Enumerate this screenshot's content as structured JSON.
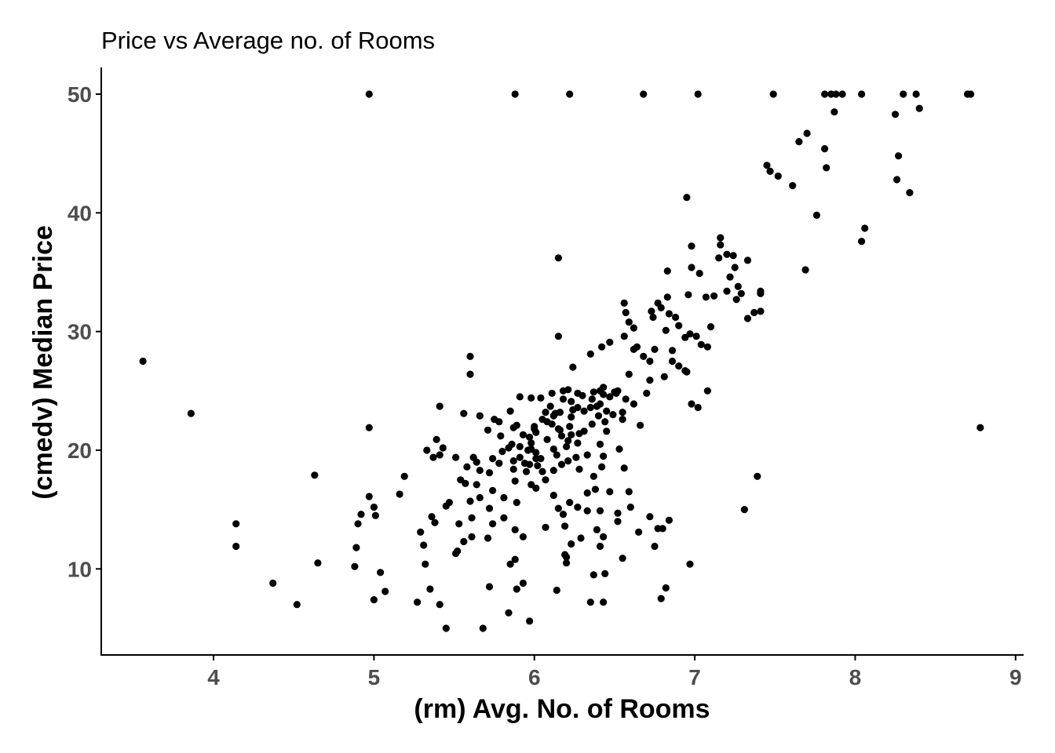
{
  "chart_data": {
    "type": "scatter",
    "title": "Price vs Average no. of Rooms",
    "xlabel": "(rm) Avg. No. of Rooms",
    "ylabel": "(cmedv) Median Price",
    "xlim": [
      3.3,
      9.05
    ],
    "ylim": [
      2.75,
      52.25
    ],
    "xticks": [
      4,
      5,
      6,
      7,
      8,
      9
    ],
    "yticks": [
      10,
      20,
      30,
      40,
      50
    ],
    "grid": false,
    "legend": "none",
    "point_color": "#000000",
    "points": [
      [
        4.97,
        50
      ],
      [
        5.88,
        50
      ],
      [
        6.22,
        50
      ],
      [
        6.68,
        50
      ],
      [
        7.02,
        50
      ],
      [
        7.49,
        50
      ],
      [
        7.81,
        50
      ],
      [
        7.85,
        50
      ],
      [
        7.88,
        50
      ],
      [
        7.92,
        50
      ],
      [
        8.04,
        50
      ],
      [
        8.3,
        50
      ],
      [
        8.38,
        50
      ],
      [
        8.7,
        50
      ],
      [
        8.72,
        50
      ],
      [
        8.4,
        48.8
      ],
      [
        7.87,
        48.5
      ],
      [
        8.25,
        48.3
      ],
      [
        7.7,
        46.7
      ],
      [
        7.65,
        46
      ],
      [
        7.81,
        45.4
      ],
      [
        8.27,
        44.8
      ],
      [
        7.45,
        44
      ],
      [
        7.82,
        43.8
      ],
      [
        7.47,
        43.5
      ],
      [
        7.52,
        43.1
      ],
      [
        8.26,
        42.8
      ],
      [
        7.61,
        42.3
      ],
      [
        8.34,
        41.7
      ],
      [
        6.95,
        41.3
      ],
      [
        7.76,
        39.8
      ],
      [
        8.06,
        38.7
      ],
      [
        8.04,
        37.6
      ],
      [
        7.16,
        37.9
      ],
      [
        7.16,
        37.3
      ],
      [
        6.98,
        37.2
      ],
      [
        7.2,
        36.5
      ],
      [
        7.15,
        36.2
      ],
      [
        7.24,
        36.4
      ],
      [
        6.15,
        36.2
      ],
      [
        7.33,
        36
      ],
      [
        7.25,
        35.4
      ],
      [
        7.69,
        35.2
      ],
      [
        6.98,
        35.4
      ],
      [
        6.83,
        35.1
      ],
      [
        7.03,
        34.9
      ],
      [
        7.22,
        34.6
      ],
      [
        7.27,
        33.8
      ],
      [
        7.2,
        33.4
      ],
      [
        7.41,
        33.4
      ],
      [
        7.41,
        33.2
      ],
      [
        7.29,
        33.2
      ],
      [
        6.96,
        33.1
      ],
      [
        7.12,
        33
      ],
      [
        7.07,
        32.9
      ],
      [
        6.83,
        32.9
      ],
      [
        7.26,
        32.7
      ],
      [
        6.77,
        32.4
      ],
      [
        6.56,
        32.4
      ],
      [
        6.79,
        32
      ],
      [
        6.73,
        31.7
      ],
      [
        6.57,
        31.6
      ],
      [
        7.37,
        31.6
      ],
      [
        6.84,
        31.5
      ],
      [
        6.74,
        31.2
      ],
      [
        7.33,
        31.1
      ],
      [
        6.88,
        31.2
      ],
      [
        7.41,
        31.7
      ],
      [
        6.59,
        30.8
      ],
      [
        6.62,
        30.3
      ],
      [
        6.82,
        30.1
      ],
      [
        7.1,
        30.4
      ],
      [
        6.97,
        29.8
      ],
      [
        7.01,
        29.6
      ],
      [
        6.94,
        29.5
      ],
      [
        6.56,
        29.6
      ],
      [
        6.15,
        29.6
      ],
      [
        6.47,
        29.1
      ],
      [
        6.42,
        28.7
      ],
      [
        6.64,
        28.7
      ],
      [
        6.62,
        28.5
      ],
      [
        6.86,
        28.4
      ],
      [
        7.04,
        28.9
      ],
      [
        7.08,
        28.7
      ],
      [
        6.75,
        28.5
      ],
      [
        6.35,
        28.1
      ],
      [
        5.6,
        27.9
      ],
      [
        6.68,
        27.9
      ],
      [
        6.86,
        27.5
      ],
      [
        6.72,
        27.5
      ],
      [
        6.9,
        27.1
      ],
      [
        6.94,
        26.7
      ],
      [
        6.95,
        26.6
      ],
      [
        5.6,
        26.4
      ],
      [
        6.24,
        27
      ],
      [
        6.59,
        26.4
      ],
      [
        6.81,
        26.2
      ],
      [
        6.72,
        25.9
      ],
      [
        6.43,
        25.3
      ],
      [
        7.08,
        25
      ],
      [
        6.52,
        25
      ],
      [
        6.41,
        25
      ],
      [
        6.27,
        24.8
      ],
      [
        6.37,
        24.9
      ],
      [
        6.43,
        24.7
      ],
      [
        6.7,
        24.8
      ],
      [
        6.51,
        24.8
      ],
      [
        6.18,
        25
      ],
      [
        6.21,
        25.1
      ],
      [
        6.11,
        24.8
      ],
      [
        5.91,
        24.5
      ],
      [
        5.98,
        24.4
      ],
      [
        6.04,
        24.4
      ],
      [
        6.47,
        24.5
      ],
      [
        6.57,
        24.3
      ],
      [
        6.98,
        23.9
      ],
      [
        7.02,
        23.6
      ],
      [
        6.62,
        23.9
      ],
      [
        6.41,
        23.9
      ],
      [
        6.39,
        23.7
      ],
      [
        6.35,
        23.6
      ],
      [
        6.27,
        23.6
      ],
      [
        5.41,
        23.7
      ],
      [
        6.31,
        23.3
      ],
      [
        6.55,
        23.2
      ],
      [
        6.07,
        23.2
      ],
      [
        6.16,
        23.2
      ],
      [
        5.85,
        23.3
      ],
      [
        6.13,
        23.1
      ],
      [
        5.56,
        23.1
      ],
      [
        5.66,
        22.9
      ],
      [
        6.23,
        22.8
      ],
      [
        6.55,
        22.6
      ],
      [
        6.44,
        22.4
      ],
      [
        6.05,
        22.6
      ],
      [
        5.75,
        22.6
      ],
      [
        5.78,
        22.4
      ],
      [
        6.11,
        22.2
      ],
      [
        6.36,
        22.2
      ],
      [
        6.66,
        22.1
      ],
      [
        6.22,
        22
      ],
      [
        6.0,
        22
      ],
      [
        5.87,
        21.9
      ],
      [
        4.97,
        21.9
      ],
      [
        6.16,
        21.7
      ],
      [
        6.28,
        21.4
      ],
      [
        6.01,
        21.5
      ],
      [
        5.71,
        21.7
      ],
      [
        5.79,
        21.2
      ],
      [
        6.17,
        21.2
      ],
      [
        6.23,
        21.3
      ],
      [
        6.45,
        21.6
      ],
      [
        6.08,
        20.9
      ],
      [
        5.98,
        20.6
      ],
      [
        6.27,
        20.6
      ],
      [
        6.41,
        20.5
      ],
      [
        5.91,
        20.3
      ],
      [
        5.39,
        20.9
      ],
      [
        5.33,
        20
      ],
      [
        5.43,
        20.2
      ],
      [
        5.86,
        20.5
      ],
      [
        5.98,
        20.1
      ],
      [
        6.12,
        20.1
      ],
      [
        6.53,
        20.1
      ],
      [
        5.8,
        19.9
      ],
      [
        6.01,
        19.8
      ],
      [
        6.33,
        19.6
      ],
      [
        6.14,
        19.6
      ],
      [
        5.62,
        19.4
      ],
      [
        5.74,
        19.3
      ],
      [
        5.91,
        19.4
      ],
      [
        5.87,
        19.1
      ],
      [
        6.04,
        19.3
      ],
      [
        6.21,
        19.1
      ],
      [
        6.43,
        19.5
      ],
      [
        5.37,
        19.4
      ],
      [
        5.41,
        19.6
      ],
      [
        5.51,
        19.4
      ],
      [
        5.64,
        19
      ],
      [
        5.78,
        18.9
      ],
      [
        5.97,
        18.8
      ],
      [
        6.02,
        18.7
      ],
      [
        6.17,
        18.8
      ],
      [
        6.42,
        18.6
      ],
      [
        6.56,
        18.5
      ],
      [
        5.87,
        18.4
      ],
      [
        5.66,
        18.3
      ],
      [
        5.58,
        18.6
      ],
      [
        5.72,
        18.1
      ],
      [
        5.95,
        18.2
      ],
      [
        6.12,
        18.3
      ],
      [
        6.28,
        18.4
      ],
      [
        6.37,
        17.8
      ],
      [
        7.39,
        17.8
      ],
      [
        4.63,
        17.9
      ],
      [
        5.19,
        17.8
      ],
      [
        5.88,
        17.4
      ],
      [
        6.07,
        17.5
      ],
      [
        5.54,
        17.5
      ],
      [
        5.57,
        17.2
      ],
      [
        5.64,
        17.1
      ],
      [
        5.98,
        17.1
      ],
      [
        5.74,
        16.6
      ],
      [
        6.01,
        16.8
      ],
      [
        6.38,
        16.7
      ],
      [
        6.47,
        16.5
      ],
      [
        6.59,
        16.5
      ],
      [
        6.12,
        16.2
      ],
      [
        5.81,
        16
      ],
      [
        5.66,
        16
      ],
      [
        5.6,
        15.7
      ],
      [
        4.97,
        16.1
      ],
      [
        5.16,
        16.3
      ],
      [
        5.89,
        15.6
      ],
      [
        6.22,
        15.6
      ],
      [
        6.27,
        15.2
      ],
      [
        5.72,
        15.1
      ],
      [
        5.47,
        15.6
      ],
      [
        5.45,
        15.3
      ],
      [
        6.6,
        15.2
      ],
      [
        6.33,
        14.9
      ],
      [
        6.41,
        14.9
      ],
      [
        6.18,
        14.6
      ],
      [
        6.52,
        14.7
      ],
      [
        6.72,
        14.4
      ],
      [
        5.61,
        14.3
      ],
      [
        5.81,
        14.3
      ],
      [
        4.92,
        14.6
      ],
      [
        5.0,
        15.2
      ],
      [
        5.01,
        14.5
      ],
      [
        4.9,
        13.8
      ],
      [
        5.36,
        14.4
      ],
      [
        5.38,
        13.9
      ],
      [
        5.53,
        13.8
      ],
      [
        5.74,
        13.8
      ],
      [
        6.07,
        13.5
      ],
      [
        6.39,
        13.3
      ],
      [
        6.19,
        13.6
      ],
      [
        6.84,
        14.1
      ],
      [
        6.77,
        13.4
      ],
      [
        6.8,
        13.4
      ],
      [
        5.29,
        13.1
      ],
      [
        5.88,
        13.3
      ],
      [
        5.61,
        12.7
      ],
      [
        5.93,
        12.7
      ],
      [
        6.29,
        12.6
      ],
      [
        6.43,
        12.7
      ],
      [
        5.56,
        12.3
      ],
      [
        5.31,
        12
      ],
      [
        5.71,
        12.6
      ],
      [
        6.23,
        12.1
      ],
      [
        6.41,
        11.9
      ],
      [
        4.14,
        13.8
      ],
      [
        4.14,
        11.9
      ],
      [
        4.89,
        11.8
      ],
      [
        5.52,
        11.5
      ],
      [
        5.51,
        11.3
      ],
      [
        6.19,
        11.2
      ],
      [
        6.2,
        11
      ],
      [
        6.55,
        10.9
      ],
      [
        5.88,
        10.8
      ],
      [
        5.85,
        10.4
      ],
      [
        5.32,
        10.4
      ],
      [
        6.2,
        10.5
      ],
      [
        4.65,
        10.5
      ],
      [
        4.88,
        10.2
      ],
      [
        6.97,
        10.4
      ],
      [
        5.04,
        9.7
      ],
      [
        6.37,
        9.5
      ],
      [
        6.44,
        9.6
      ],
      [
        4.37,
        8.8
      ],
      [
        5.93,
        8.8
      ],
      [
        5.07,
        8.1
      ],
      [
        5.35,
        8.3
      ],
      [
        5.72,
        8.5
      ],
      [
        6.14,
        8.2
      ],
      [
        6.82,
        8.4
      ],
      [
        5.89,
        8.3
      ],
      [
        4.52,
        7
      ],
      [
        5.0,
        7.4
      ],
      [
        5.27,
        7.2
      ],
      [
        5.41,
        7
      ],
      [
        6.35,
        7.2
      ],
      [
        6.43,
        7.2
      ],
      [
        6.79,
        7.5
      ],
      [
        5.84,
        6.3
      ],
      [
        5.97,
        5.6
      ],
      [
        5.45,
        5
      ],
      [
        5.68,
        5
      ],
      [
        3.56,
        27.5
      ],
      [
        3.86,
        23.1
      ],
      [
        8.78,
        21.9
      ],
      [
        7.31,
        15
      ],
      [
        6.9,
        30.5
      ],
      [
        6.36,
        24.3
      ],
      [
        6.12,
        22.9
      ],
      [
        6.45,
        23.3
      ],
      [
        5.97,
        21.1
      ],
      [
        6.21,
        20.8
      ],
      [
        6.31,
        21.6
      ],
      [
        6.08,
        22.4
      ],
      [
        6.01,
        19.3
      ],
      [
        5.84,
        20.2
      ],
      [
        5.94,
        18.9
      ],
      [
        6.23,
        24.1
      ],
      [
        6.3,
        24.6
      ],
      [
        6.1,
        23.7
      ],
      [
        6.4,
        22.9
      ],
      [
        6.49,
        23
      ],
      [
        6.0,
        21.8
      ],
      [
        5.93,
        21.3
      ],
      [
        6.18,
        24.3
      ],
      [
        6.5,
        24.9
      ],
      [
        6.24,
        23.4
      ],
      [
        6.15,
        21.8
      ],
      [
        5.96,
        20
      ],
      [
        6.26,
        19.4
      ],
      [
        6.2,
        20.3
      ],
      [
        5.89,
        22.1
      ],
      [
        6.05,
        18.2
      ],
      [
        6.33,
        16.4
      ],
      [
        6.15,
        15.1
      ],
      [
        6.52,
        14
      ],
      [
        6.65,
        13.1
      ],
      [
        6.75,
        11.9
      ]
    ]
  }
}
